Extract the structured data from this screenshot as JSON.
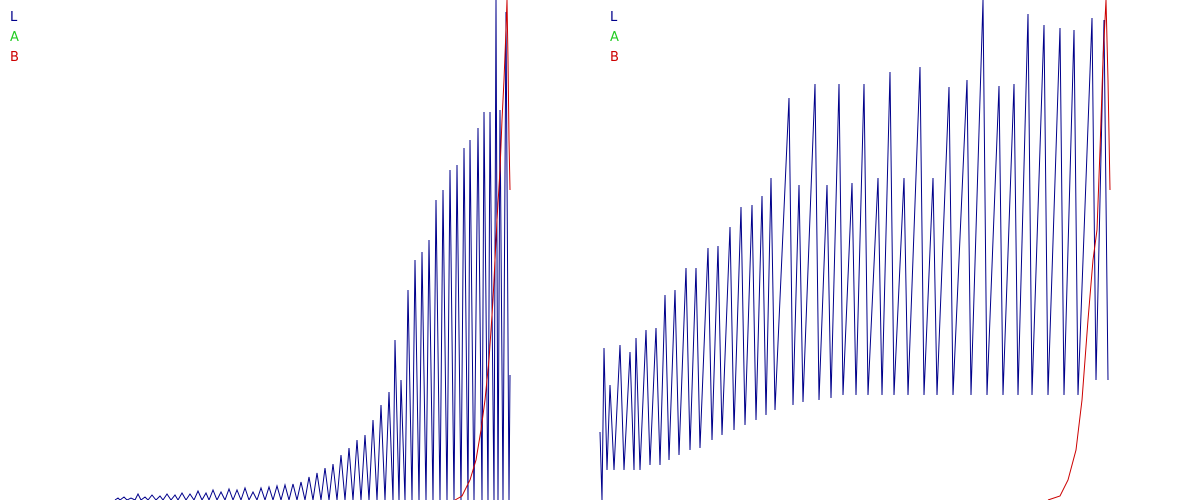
{
  "colors": {
    "L": "#00008b",
    "A": "#22cc22",
    "B": "#cc0000",
    "background": "#ffffff"
  },
  "chart_data": [
    {
      "type": "line",
      "legend": [
        "L",
        "A",
        "B"
      ],
      "legend_position": "top-left",
      "grid": false,
      "xlim": [
        0,
        510
      ],
      "ylim": [
        0,
        500
      ],
      "series": [
        {
          "name": "L",
          "points": [
            [
              115,
              500
            ],
            [
              118,
              498
            ],
            [
              120,
              500
            ],
            [
              124,
              497
            ],
            [
              127,
              500
            ],
            [
              131,
              498
            ],
            [
              135,
              500
            ],
            [
              138,
              494
            ],
            [
              141,
              500
            ],
            [
              145,
              497
            ],
            [
              148,
              500
            ],
            [
              152,
              495
            ],
            [
              156,
              500
            ],
            [
              160,
              496
            ],
            [
              163,
              500
            ],
            [
              167,
              494
            ],
            [
              171,
              500
            ],
            [
              175,
              495
            ],
            [
              178,
              500
            ],
            [
              182,
              493
            ],
            [
              186,
              500
            ],
            [
              190,
              494
            ],
            [
              194,
              500
            ],
            [
              198,
              491
            ],
            [
              202,
              500
            ],
            [
              206,
              493
            ],
            [
              209,
              500
            ],
            [
              213,
              490
            ],
            [
              217,
              500
            ],
            [
              221,
              492
            ],
            [
              225,
              500
            ],
            [
              229,
              489
            ],
            [
              233,
              500
            ],
            [
              237,
              490
            ],
            [
              241,
              500
            ],
            [
              245,
              488
            ],
            [
              249,
              500
            ],
            [
              253,
              492
            ],
            [
              257,
              500
            ],
            [
              261,
              488
            ],
            [
              265,
              500
            ],
            [
              269,
              487
            ],
            [
              273,
              500
            ],
            [
              277,
              486
            ],
            [
              281,
              500
            ],
            [
              285,
              485
            ],
            [
              289,
              500
            ],
            [
              293,
              484
            ],
            [
              297,
              500
            ],
            [
              301,
              482
            ],
            [
              305,
              500
            ],
            [
              309,
              477
            ],
            [
              313,
              500
            ],
            [
              317,
              473
            ],
            [
              321,
              500
            ],
            [
              325,
              468
            ],
            [
              329,
              500
            ],
            [
              333,
              464
            ],
            [
              337,
              500
            ],
            [
              341,
              455
            ],
            [
              345,
              500
            ],
            [
              349,
              448
            ],
            [
              353,
              500
            ],
            [
              357,
              440
            ],
            [
              361,
              500
            ],
            [
              365,
              435
            ],
            [
              369,
              500
            ],
            [
              373,
              420
            ],
            [
              377,
              500
            ],
            [
              381,
              405
            ],
            [
              385,
              500
            ],
            [
              389,
              392
            ],
            [
              393,
              500
            ],
            [
              395,
              340
            ],
            [
              399,
              500
            ],
            [
              401,
              380
            ],
            [
              405,
              500
            ],
            [
              408,
              290
            ],
            [
              412,
              500
            ],
            [
              415,
              260
            ],
            [
              419,
              500
            ],
            [
              422,
              252
            ],
            [
              426,
              500
            ],
            [
              429,
              240
            ],
            [
              433,
              500
            ],
            [
              436,
              200
            ],
            [
              440,
              500
            ],
            [
              443,
              190
            ],
            [
              447,
              500
            ],
            [
              450,
              170
            ],
            [
              454,
              500
            ],
            [
              457,
              165
            ],
            [
              461,
              500
            ],
            [
              464,
              148
            ],
            [
              468,
              500
            ],
            [
              470,
              140
            ],
            [
              474,
              500
            ],
            [
              478,
              128
            ],
            [
              482,
              500
            ],
            [
              484,
              112
            ],
            [
              488,
              500
            ],
            [
              490,
              112
            ],
            [
              494,
              500
            ],
            [
              496,
              0
            ],
            [
              498,
              500
            ],
            [
              500,
              110
            ],
            [
              503,
              500
            ],
            [
              506,
              12
            ],
            [
              509,
              500
            ],
            [
              510,
              375
            ]
          ]
        },
        {
          "name": "B",
          "points": [
            [
              455,
              500
            ],
            [
              462,
              496
            ],
            [
              470,
              480
            ],
            [
              476,
              460
            ],
            [
              481,
              430
            ],
            [
              485,
              400
            ],
            [
              489,
              360
            ],
            [
              493,
              300
            ],
            [
              497,
              220
            ],
            [
              500,
              170
            ],
            [
              502,
              120
            ],
            [
              504,
              80
            ],
            [
              506,
              30
            ],
            [
              507,
              0
            ],
            [
              508,
              60
            ],
            [
              509,
              140
            ],
            [
              510,
              190
            ]
          ]
        }
      ]
    },
    {
      "type": "line",
      "legend": [
        "L",
        "A",
        "B"
      ],
      "legend_position": "top-left",
      "grid": false,
      "xlim": [
        600,
        1110
      ],
      "ylim": [
        0,
        500
      ],
      "series": [
        {
          "name": "L",
          "points": [
            [
              600,
              432
            ],
            [
              602,
              500
            ],
            [
              604,
              348
            ],
            [
              607,
              470
            ],
            [
              610,
              385
            ],
            [
              614,
              470
            ],
            [
              620,
              345
            ],
            [
              624,
              470
            ],
            [
              630,
              352
            ],
            [
              634,
              470
            ],
            [
              636,
              338
            ],
            [
              640,
              470
            ],
            [
              646,
              330
            ],
            [
              650,
              465
            ],
            [
              656,
              328
            ],
            [
              660,
              465
            ],
            [
              665,
              295
            ],
            [
              669,
              460
            ],
            [
              675,
              290
            ],
            [
              679,
              455
            ],
            [
              686,
              268
            ],
            [
              690,
              450
            ],
            [
              696,
              268
            ],
            [
              700,
              448
            ],
            [
              708,
              248
            ],
            [
              712,
              440
            ],
            [
              718,
              246
            ],
            [
              722,
              435
            ],
            [
              730,
              227
            ],
            [
              734,
              430
            ],
            [
              741,
              207
            ],
            [
              745,
              425
            ],
            [
              752,
              205
            ],
            [
              756,
              420
            ],
            [
              762,
              196
            ],
            [
              766,
              415
            ],
            [
              771,
              178
            ],
            [
              775,
              410
            ],
            [
              789,
              98
            ],
            [
              793,
              405
            ],
            [
              799,
              185
            ],
            [
              803,
              402
            ],
            [
              815,
              84
            ],
            [
              819,
              400
            ],
            [
              827,
              185
            ],
            [
              831,
              398
            ],
            [
              839,
              84
            ],
            [
              843,
              395
            ],
            [
              852,
              183
            ],
            [
              856,
              395
            ],
            [
              864,
              84
            ],
            [
              868,
              395
            ],
            [
              878,
              178
            ],
            [
              882,
              395
            ],
            [
              890,
              72
            ],
            [
              894,
              395
            ],
            [
              904,
              178
            ],
            [
              908,
              395
            ],
            [
              920,
              67
            ],
            [
              924,
              395
            ],
            [
              933,
              178
            ],
            [
              937,
              395
            ],
            [
              949,
              87
            ],
            [
              953,
              395
            ],
            [
              967,
              80
            ],
            [
              971,
              395
            ],
            [
              983,
              0
            ],
            [
              987,
              395
            ],
            [
              999,
              86
            ],
            [
              1003,
              395
            ],
            [
              1014,
              84
            ],
            [
              1018,
              395
            ],
            [
              1028,
              14
            ],
            [
              1032,
              395
            ],
            [
              1044,
              25
            ],
            [
              1048,
              395
            ],
            [
              1060,
              28
            ],
            [
              1064,
              395
            ],
            [
              1074,
              30
            ],
            [
              1078,
              395
            ],
            [
              1092,
              18
            ],
            [
              1096,
              380
            ],
            [
              1104,
              20
            ],
            [
              1108,
              380
            ]
          ]
        },
        {
          "name": "B",
          "points": [
            [
              1048,
              500
            ],
            [
              1060,
              496
            ],
            [
              1068,
              480
            ],
            [
              1076,
              450
            ],
            [
              1082,
              400
            ],
            [
              1088,
              320
            ],
            [
              1093,
              260
            ],
            [
              1097,
              230
            ],
            [
              1100,
              150
            ],
            [
              1103,
              60
            ],
            [
              1106,
              0
            ],
            [
              1108,
              80
            ],
            [
              1110,
              190
            ]
          ]
        }
      ]
    }
  ]
}
